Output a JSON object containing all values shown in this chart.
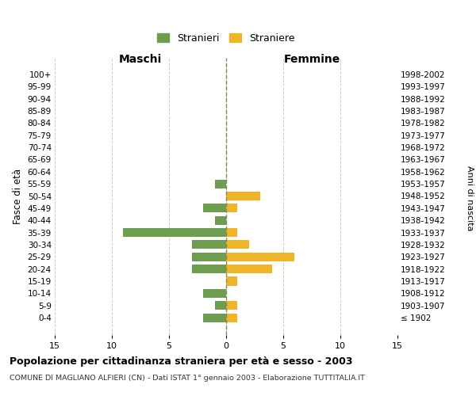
{
  "age_groups": [
    "100+",
    "95-99",
    "90-94",
    "85-89",
    "80-84",
    "75-79",
    "70-74",
    "65-69",
    "60-64",
    "55-59",
    "50-54",
    "45-49",
    "40-44",
    "35-39",
    "30-34",
    "25-29",
    "20-24",
    "15-19",
    "10-14",
    "5-9",
    "0-4"
  ],
  "birth_years": [
    "≤ 1902",
    "1903-1907",
    "1908-1912",
    "1913-1917",
    "1918-1922",
    "1923-1927",
    "1928-1932",
    "1933-1937",
    "1938-1942",
    "1943-1947",
    "1948-1952",
    "1953-1957",
    "1958-1962",
    "1963-1967",
    "1968-1972",
    "1973-1977",
    "1978-1982",
    "1983-1987",
    "1988-1992",
    "1993-1997",
    "1998-2002"
  ],
  "males": [
    0,
    0,
    0,
    0,
    0,
    0,
    0,
    0,
    0,
    1,
    0,
    2,
    1,
    9,
    3,
    3,
    3,
    0,
    2,
    1,
    2
  ],
  "females": [
    0,
    0,
    0,
    0,
    0,
    0,
    0,
    0,
    0,
    0,
    3,
    1,
    0,
    1,
    2,
    6,
    4,
    1,
    0,
    1,
    1
  ],
  "male_color": "#6d9e4f",
  "female_color": "#f0b429",
  "center_line_color": "#888855",
  "grid_color": "#cccccc",
  "bg_color": "#ffffff",
  "xlim": 15,
  "title": "Popolazione per cittadinanza straniera per età e sesso - 2003",
  "subtitle": "COMUNE DI MAGLIANO ALFIERI (CN) - Dati ISTAT 1° gennaio 2003 - Elaborazione TUTTITALIA.IT",
  "ylabel_left": "Fasce di età",
  "ylabel_right": "Anni di nascita",
  "xlabel_left": "Maschi",
  "xlabel_right": "Femmine",
  "legend_male": "Stranieri",
  "legend_female": "Straniere"
}
